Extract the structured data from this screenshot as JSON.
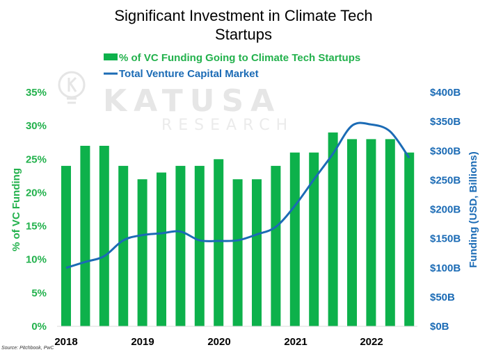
{
  "colors": {
    "bar": "#0DB14B",
    "line": "#1B6BB5",
    "left_axis_text": "#22B14C",
    "right_axis_text": "#1B6BB5",
    "watermark": "#e3e3e3"
  },
  "watermark": {
    "brand": "KATUSA",
    "sub": "RESEARCH",
    "logo_icon": "lightbulb-k-logo"
  },
  "source": "Source: Pitchbook, PwC",
  "chart_data": {
    "type": "bar",
    "title_lines": [
      "Significant Investment  in Climate Tech",
      "Startups"
    ],
    "legend": {
      "bar_label": "% of VC Funding Going to Climate Tech Startups",
      "line_label": "Total Venture Capital Market"
    },
    "ylabel_left": "% of VC Funding",
    "ylabel_right": "Funding (USD, Billions)",
    "ylim_left": [
      0,
      35
    ],
    "ylim_right": [
      0,
      400
    ],
    "y_ticks_left": [
      "0%",
      "5%",
      "10%",
      "15%",
      "20%",
      "25%",
      "30%",
      "35%"
    ],
    "y_ticks_right": [
      "$0B",
      "$50B",
      "$100B",
      "$150B",
      "$200B",
      "$250B",
      "$300B",
      "$350B",
      "$400B"
    ],
    "x_tick_labels": [
      "2018",
      "2019",
      "2020",
      "2021",
      "2022"
    ],
    "bar_series": {
      "name": "% of VC Funding Going to Climate Tech Startups",
      "values": [
        24,
        27,
        27,
        24,
        22,
        23,
        24,
        24,
        25,
        22,
        22,
        24,
        26,
        26,
        29,
        28,
        28,
        28,
        26
      ]
    },
    "line_series": {
      "name": "Total Venture Capital Market",
      "values": [
        100,
        110,
        120,
        147,
        156,
        159,
        162,
        147,
        146,
        147,
        157,
        170,
        206,
        251,
        295,
        343,
        345,
        333,
        288
      ]
    }
  }
}
